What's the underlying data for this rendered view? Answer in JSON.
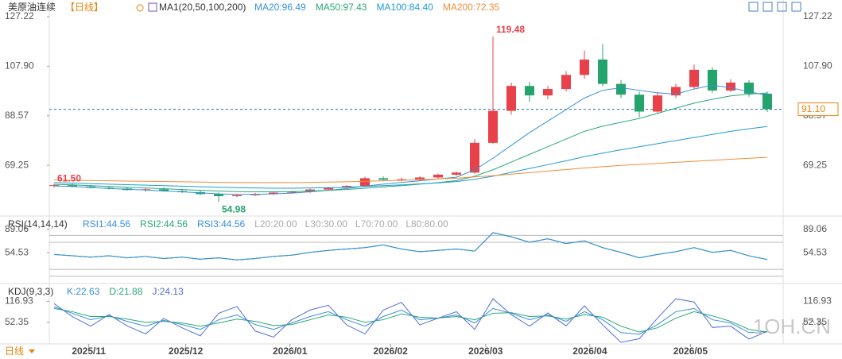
{
  "chart_data": [
    {
      "type": "candlestick",
      "title": "美原油连续",
      "period": "【日线】",
      "indicator": "MA1(20,50,100,200)",
      "up_color": "#e8414a",
      "down_color": "#24a46d",
      "open": [
        61.2,
        61.5,
        61.0,
        60.5,
        60.2,
        59.6,
        59.9,
        59.2,
        58.8,
        58.0,
        57.2,
        57.6,
        58.1,
        58.6,
        58.9,
        59.8,
        60.6,
        61.2,
        64.2,
        63.6,
        63.8,
        64.5,
        65.6,
        66.4,
        78.0,
        90.5,
        100.2,
        96.5,
        99.0,
        104.5,
        110.5,
        101.0,
        96.8,
        90.2,
        96.5,
        99.8,
        106.5,
        98.4,
        101.5,
        97.2
      ],
      "high": [
        62.0,
        62.1,
        61.6,
        61.2,
        60.8,
        60.5,
        60.6,
        60.0,
        59.4,
        58.6,
        58.0,
        58.5,
        58.9,
        59.3,
        60.2,
        60.9,
        61.5,
        64.8,
        65.0,
        64.4,
        65.0,
        66.0,
        66.8,
        79.5,
        119.48,
        101.5,
        101.8,
        100.2,
        106.0,
        114.0,
        116.5,
        102.5,
        98.0,
        97.8,
        101.0,
        108.5,
        107.5,
        102.8,
        102.4,
        98.0
      ],
      "low": [
        60.6,
        60.7,
        60.2,
        59.8,
        59.4,
        59.0,
        59.0,
        58.4,
        57.6,
        54.98,
        56.8,
        57.2,
        57.7,
        58.2,
        58.5,
        59.4,
        60.2,
        61.0,
        63.0,
        63.0,
        63.3,
        64.1,
        65.2,
        66.0,
        77.5,
        89.0,
        94.0,
        95.0,
        98.0,
        103.0,
        100.0,
        95.5,
        88.0,
        89.5,
        95.5,
        99.0,
        97.5,
        97.8,
        96.0,
        90.0
      ],
      "close": [
        61.5,
        61.0,
        60.5,
        60.2,
        59.6,
        59.9,
        59.2,
        58.8,
        58.0,
        57.2,
        57.6,
        58.1,
        58.6,
        58.9,
        59.8,
        60.6,
        61.2,
        64.2,
        63.6,
        63.8,
        64.5,
        65.6,
        66.4,
        78.0,
        90.5,
        100.2,
        96.5,
        99.0,
        104.5,
        110.5,
        101.0,
        96.8,
        90.2,
        96.5,
        99.8,
        106.5,
        98.4,
        101.5,
        97.2,
        91.1
      ],
      "series": [
        {
          "name": "MA20:96.49",
          "color": "#3a8fd9",
          "values": [
            61.2,
            61.0,
            60.6,
            60.2,
            59.9,
            59.6,
            59.2,
            58.9,
            58.5,
            58.1,
            57.9,
            57.9,
            58.1,
            58.4,
            58.9,
            59.5,
            60.2,
            61.1,
            61.9,
            62.6,
            63.2,
            63.9,
            64.6,
            67.5,
            72.0,
            77.0,
            82.0,
            86.5,
            91.0,
            95.5,
            98.5,
            99.5,
            98.5,
            97.5,
            97.0,
            99.0,
            100.5,
            99.5,
            98.0,
            96.49
          ]
        },
        {
          "name": "MA50:97.43",
          "color": "#2aa876",
          "values": [
            61.8,
            61.6,
            61.3,
            61.0,
            60.7,
            60.4,
            60.1,
            59.8,
            59.5,
            59.2,
            59.0,
            58.9,
            58.9,
            59.0,
            59.2,
            59.5,
            59.8,
            60.3,
            60.8,
            61.3,
            61.9,
            62.5,
            63.3,
            65.0,
            67.5,
            70.5,
            73.5,
            76.5,
            79.5,
            82.5,
            84.5,
            86.0,
            87.5,
            89.5,
            91.5,
            93.5,
            95.0,
            96.3,
            97.0,
            97.43
          ]
        },
        {
          "name": "MA100:84.40",
          "color": "#1f9bd1",
          "values": [
            62.5,
            62.3,
            62.1,
            61.9,
            61.7,
            61.5,
            61.3,
            61.1,
            60.9,
            60.7,
            60.5,
            60.4,
            60.3,
            60.3,
            60.4,
            60.5,
            60.7,
            61.0,
            61.3,
            61.6,
            62.0,
            62.4,
            62.9,
            63.8,
            65.0,
            66.5,
            68.0,
            69.5,
            71.0,
            72.6,
            74.0,
            75.3,
            76.5,
            77.7,
            78.9,
            80.1,
            81.3,
            82.5,
            83.5,
            84.4
          ]
        },
        {
          "name": "MA200:72.35",
          "color": "#f08c3a",
          "values": [
            63.5,
            63.4,
            63.3,
            63.2,
            63.1,
            63.0,
            62.9,
            62.8,
            62.7,
            62.6,
            62.5,
            62.5,
            62.5,
            62.5,
            62.6,
            62.7,
            62.8,
            63.0,
            63.2,
            63.4,
            63.6,
            63.9,
            64.2,
            64.7,
            65.2,
            65.8,
            66.4,
            67.0,
            67.6,
            68.2,
            68.7,
            69.2,
            69.6,
            70.0,
            70.4,
            70.8,
            71.2,
            71.6,
            72.0,
            72.35
          ]
        }
      ],
      "ylim": [
        50.08,
        130.62
      ],
      "yticks": [
        127.22,
        {
          "value": 107.9,
          "label": "107.90"
        },
        88.57,
        69.25
      ],
      "last_price": {
        "value": 91.1,
        "label": "91.10"
      },
      "annotations": [
        {
          "index": 24,
          "value": 119.48,
          "label": "119.48"
        },
        {
          "index": 9,
          "value": 54.98,
          "label": "54.98"
        },
        {
          "index": 0,
          "value": 61.5,
          "label": "61.50"
        }
      ],
      "xticks": [
        {
          "value": 1.9,
          "label": "2025/11"
        },
        {
          "value": 7.2,
          "label": "2025/12"
        },
        {
          "value": 12.9,
          "label": "2026/01"
        },
        {
          "value": 18.4,
          "label": "2026/02"
        },
        {
          "value": 23.6,
          "label": "2026/03"
        },
        {
          "value": 29.3,
          "label": "2026/04"
        },
        {
          "value": 34.8,
          "label": "2026/05"
        }
      ],
      "period_selector": "日线",
      "watermark": "1OH.CN"
    },
    {
      "type": "line",
      "title": "RSI(14,14,14)",
      "series": [
        {
          "name": "RSI1:44.56",
          "color": "#3a8fd9",
          "values": [
            52,
            50,
            48,
            50,
            47,
            49,
            46,
            48,
            45,
            47,
            44,
            46,
            49,
            51,
            55,
            58,
            60,
            62,
            66,
            60,
            56,
            58,
            60,
            57,
            84,
            78,
            70,
            75,
            68,
            72,
            62,
            55,
            47,
            52,
            56,
            62,
            55,
            58,
            50,
            44.56
          ]
        },
        {
          "name": "RSI2:44.56",
          "color": "#2aa876",
          "values": [
            52,
            50,
            48,
            50,
            47,
            49,
            46,
            48,
            45,
            47,
            44,
            46,
            49,
            51,
            55,
            58,
            60,
            62,
            66,
            60,
            56,
            58,
            60,
            57,
            84,
            78,
            70,
            75,
            68,
            72,
            62,
            55,
            47,
            52,
            56,
            62,
            55,
            58,
            50,
            44.56
          ]
        },
        {
          "name": "RSI3:44.56",
          "color": "#3a8fd9",
          "values": [
            52,
            50,
            48,
            50,
            47,
            49,
            46,
            48,
            45,
            47,
            44,
            46,
            49,
            51,
            55,
            58,
            60,
            62,
            66,
            60,
            56,
            58,
            60,
            57,
            84,
            78,
            70,
            75,
            68,
            72,
            62,
            55,
            47,
            52,
            56,
            62,
            55,
            58,
            50,
            44.56
          ]
        }
      ],
      "levels": [
        {
          "value": 20,
          "label": "L20:20.00"
        },
        {
          "value": 30,
          "label": "L30:30.00"
        },
        {
          "value": 70,
          "label": "L70:70.00"
        },
        {
          "value": 80,
          "label": "L80:80.00"
        }
      ],
      "ylim": [
        15,
        105
      ],
      "yticks": [
        89.06,
        54.53
      ]
    },
    {
      "type": "line",
      "title": "KDJ(9,3,3)",
      "series": [
        {
          "name": "K:22.63",
          "color": "#3a8fd9",
          "values": [
            100,
            80,
            60,
            72,
            55,
            40,
            58,
            45,
            30,
            60,
            75,
            45,
            30,
            50,
            70,
            85,
            60,
            40,
            70,
            90,
            60,
            65,
            75,
            50,
            95,
            80,
            60,
            75,
            55,
            85,
            60,
            20,
            15,
            45,
            85,
            95,
            60,
            50,
            20,
            22.63
          ]
        },
        {
          "name": "D:21.88",
          "color": "#2aa876",
          "values": [
            95,
            85,
            70,
            70,
            62,
            52,
            55,
            50,
            40,
            50,
            62,
            55,
            42,
            45,
            60,
            75,
            68,
            52,
            60,
            78,
            68,
            65,
            70,
            60,
            80,
            82,
            70,
            72,
            62,
            76,
            68,
            40,
            22,
            35,
            65,
            85,
            72,
            55,
            30,
            21.88
          ]
        },
        {
          "name": "J:24.13",
          "color": "#4f6fd8",
          "values": [
            110,
            70,
            40,
            76,
            41,
            16,
            64,
            35,
            10,
            80,
            101,
            25,
            6,
            60,
            90,
            105,
            44,
            16,
            90,
            114,
            44,
            65,
            85,
            30,
            125,
            76,
            40,
            81,
            41,
            103,
            44,
            -10,
            1,
            65,
            125,
            115,
            36,
            40,
            0,
            24.13
          ]
        }
      ],
      "ylim": [
        -15,
        160
      ],
      "yticks": [
        116.93,
        52.35
      ]
    }
  ]
}
